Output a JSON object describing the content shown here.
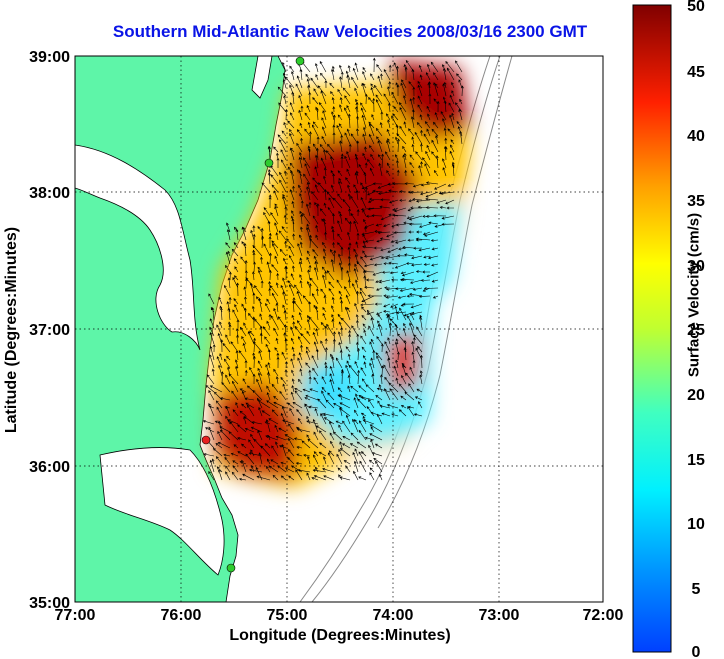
{
  "title": "Southern Mid-Atlantic Raw Velocities 2008/03/16 2300 GMT",
  "x_axis": {
    "label": "Longitude (Degrees:Minutes)",
    "ticks": [
      "77:00",
      "76:00",
      "75:00",
      "74:00",
      "73:00",
      "72:00"
    ]
  },
  "y_axis": {
    "label": "Latitude (Degrees:Minutes)",
    "ticks": [
      "39:00",
      "38:00",
      "37:00",
      "36:00",
      "35:00"
    ]
  },
  "colorbar": {
    "label": "Surface Velocity (cm/s)",
    "ticks": [
      "50",
      "45",
      "40",
      "35",
      "30",
      "25",
      "20",
      "15",
      "10",
      "5",
      "0"
    ],
    "range": [
      0,
      50
    ]
  },
  "map": {
    "extent_lon": [
      -77,
      -72
    ],
    "extent_lat": [
      35,
      39
    ],
    "grid": "dotted",
    "land_color": "#5ef5a8",
    "water_color": "#ffffff",
    "station_markers": [
      {
        "color": "#2ecc2e",
        "lon": -74.88,
        "lat": 38.98
      },
      {
        "color": "#2ecc2e",
        "lon": -75.08,
        "lat": 38.22
      },
      {
        "color": "#e82020",
        "lon": -75.7,
        "lat": 36.18
      },
      {
        "color": "#2ecc2e",
        "lon": -75.5,
        "lat": 35.25
      }
    ]
  },
  "colors": {
    "title": "#0a14e6",
    "arrows": "#000000"
  }
}
